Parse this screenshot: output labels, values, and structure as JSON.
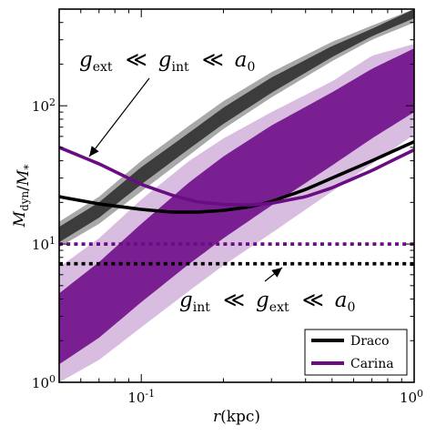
{
  "chart_data": {
    "type": "line",
    "xscale": "log",
    "yscale": "log",
    "xlim": [
      0.05,
      1.0
    ],
    "ylim": [
      1,
      500
    ],
    "xlabel": "r(kpc)",
    "ylabel": "M_dyn / M_*",
    "x_ticks": [
      {
        "value": 0.1,
        "label": "10^-1"
      },
      {
        "value": 1.0,
        "label": "10^0"
      }
    ],
    "y_ticks": [
      {
        "value": 1,
        "label": "10^0"
      },
      {
        "value": 10,
        "label": "10^1"
      },
      {
        "value": 100,
        "label": "10^2"
      }
    ],
    "legend": {
      "position": "lower-right",
      "entries": [
        {
          "label": "Draco",
          "color": "#000000"
        },
        {
          "label": "Carina",
          "color": "#6a0d83"
        }
      ]
    },
    "annotations": [
      {
        "text": "g_ext ≪ g_int ≪ a_0",
        "points_to": "Carina solid curve at r≈0.065 kpc",
        "position": "upper-left"
      },
      {
        "text": "g_int ≪ g_ext ≪ a_0",
        "points_to": "Draco dotted line at r≈0.34 kpc",
        "position": "lower-middle"
      }
    ],
    "series": [
      {
        "name": "Draco",
        "style": "solid",
        "color": "#000000",
        "x": [
          0.05,
          0.07,
          0.1,
          0.13,
          0.16,
          0.2,
          0.25,
          0.3,
          0.4,
          0.5,
          0.7,
          1.0
        ],
        "y": [
          22,
          19.5,
          17.8,
          17.0,
          17.0,
          17.5,
          18.6,
          20.3,
          24.8,
          30,
          40,
          55
        ]
      },
      {
        "name": "Carina",
        "style": "solid",
        "color": "#6a0d83",
        "x": [
          0.05,
          0.07,
          0.1,
          0.13,
          0.16,
          0.2,
          0.25,
          0.3,
          0.4,
          0.5,
          0.7,
          1.0
        ],
        "y": [
          50,
          38,
          27,
          22.5,
          20.2,
          19.3,
          19.2,
          19.7,
          22,
          25.5,
          34,
          48
        ]
      },
      {
        "name": "Draco",
        "style": "dotted",
        "color": "#000000",
        "x": [
          0.05,
          1.0
        ],
        "y": [
          7.2,
          7.2
        ]
      },
      {
        "name": "Carina",
        "style": "dotted",
        "color": "#6a0d83",
        "x": [
          0.05,
          1.0
        ],
        "y": [
          10,
          10
        ]
      }
    ],
    "bands": [
      {
        "series": "Draco",
        "level": "outer",
        "color": "#a8a8a8",
        "x": [
          0.05,
          0.07,
          0.1,
          0.15,
          0.2,
          0.3,
          0.5,
          0.7,
          1.0
        ],
        "lower": [
          9.5,
          14,
          24,
          44,
          68,
          115,
          210,
          300,
          400
        ],
        "upper": [
          14.5,
          22,
          40,
          72,
          108,
          175,
          290,
          380,
          500
        ]
      },
      {
        "series": "Draco",
        "level": "inner",
        "color": "#3c3c3c",
        "x": [
          0.05,
          0.07,
          0.1,
          0.15,
          0.2,
          0.3,
          0.5,
          0.7,
          1.0
        ],
        "lower": [
          10.3,
          15.5,
          27,
          49,
          74,
          124,
          225,
          318,
          430
        ],
        "upper": [
          13.3,
          20,
          36,
          64,
          97,
          160,
          270,
          360,
          500
        ]
      },
      {
        "series": "Carina",
        "level": "outer",
        "color": "#d8bde0",
        "x": [
          0.05,
          0.07,
          0.1,
          0.15,
          0.2,
          0.3,
          0.5,
          0.7,
          1.0
        ],
        "lower": [
          1.0,
          1.45,
          2.5,
          4.6,
          7.0,
          12,
          24,
          38,
          62
        ],
        "upper": [
          6.8,
          11,
          21,
          40,
          58,
          90,
          150,
          230,
          280
        ]
      },
      {
        "series": "Carina",
        "level": "inner",
        "color": "#7a1f92",
        "x": [
          0.05,
          0.07,
          0.1,
          0.15,
          0.2,
          0.3,
          0.5,
          0.7,
          1.0
        ],
        "lower": [
          1.35,
          2.1,
          3.8,
          7.2,
          11,
          19,
          37,
          58,
          90
        ],
        "upper": [
          4.4,
          7.4,
          14,
          28,
          43,
          72,
          125,
          185,
          260
        ]
      }
    ]
  }
}
